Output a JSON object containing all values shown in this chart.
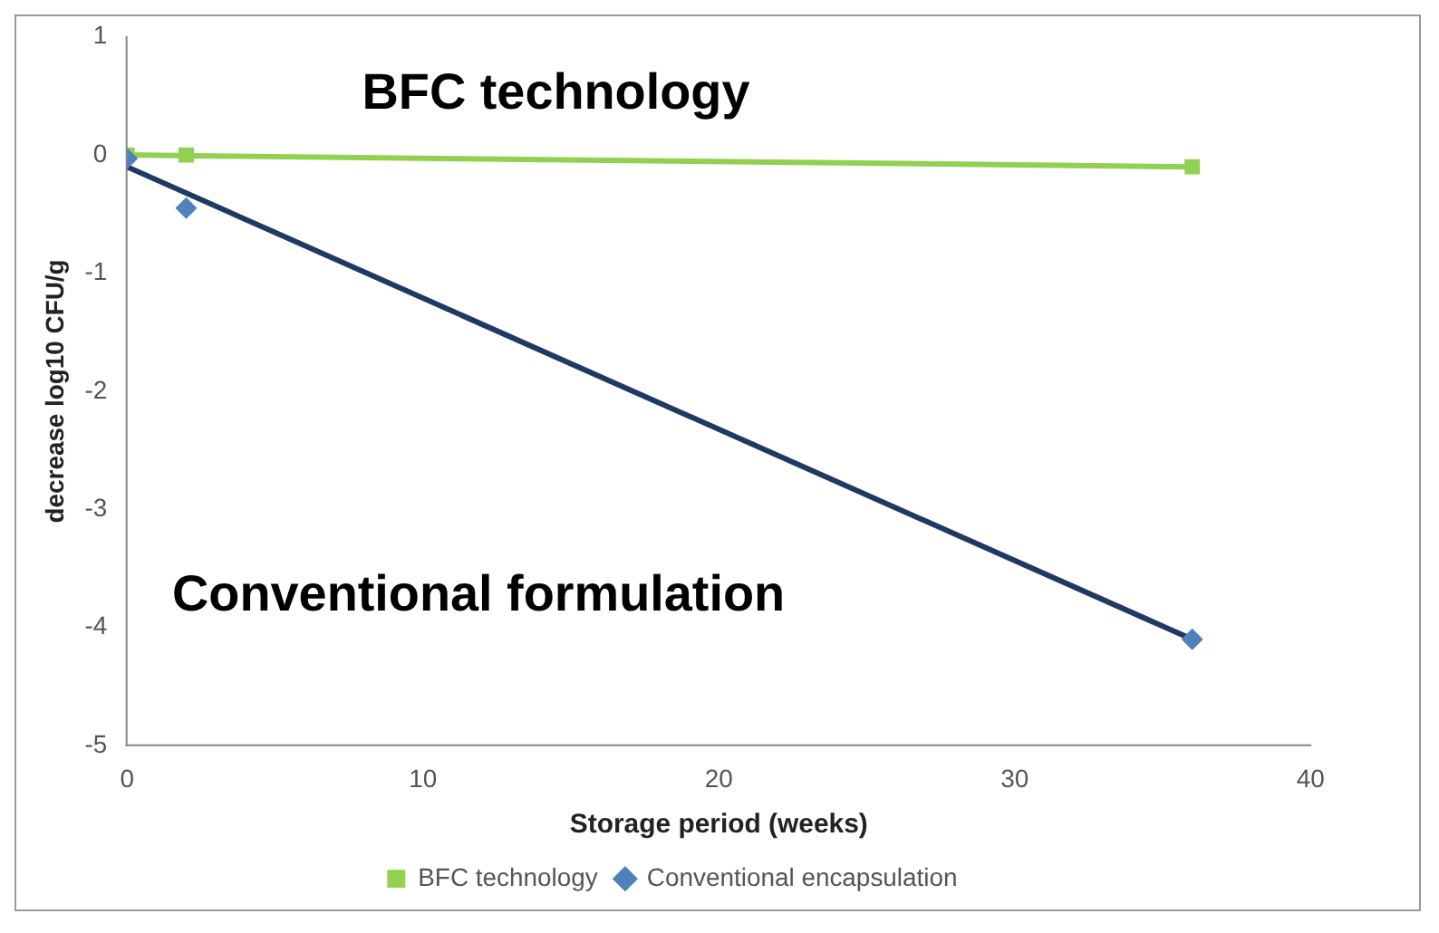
{
  "chart_data": {
    "type": "scatter",
    "xlabel": "Storage period (weeks)",
    "ylabel": "decrease log10 CFU/g",
    "xlim": [
      0,
      40
    ],
    "xticks": [
      0,
      10,
      20,
      30,
      40
    ],
    "ylim": [
      -5,
      1
    ],
    "yticks": [
      -5,
      -4,
      -3,
      -2,
      -1,
      0,
      1
    ],
    "grid": false,
    "legend": "bottom",
    "annotations": [
      "BFC technology",
      "Conventional formulation"
    ],
    "series": [
      {
        "name": "BFC technology",
        "type": "scatter",
        "marker": "square",
        "color": "#92d050",
        "x": [
          0,
          2,
          36
        ],
        "values": [
          0,
          0,
          -0.1
        ]
      },
      {
        "name": "Conventional encapsulation",
        "type": "scatter",
        "marker": "diamond",
        "color": "#4f81bd",
        "x": [
          0,
          2,
          36
        ],
        "values": [
          -0.03,
          -0.45,
          -4.1
        ]
      },
      {
        "type": "line",
        "marker": "none",
        "color": "#92d050",
        "x": [
          0,
          36
        ],
        "values": [
          0,
          -0.1
        ]
      },
      {
        "type": "line",
        "marker": "none",
        "color": "#1f3864",
        "x": [
          0,
          36
        ],
        "values": [
          -0.1,
          -4.1
        ]
      }
    ]
  }
}
